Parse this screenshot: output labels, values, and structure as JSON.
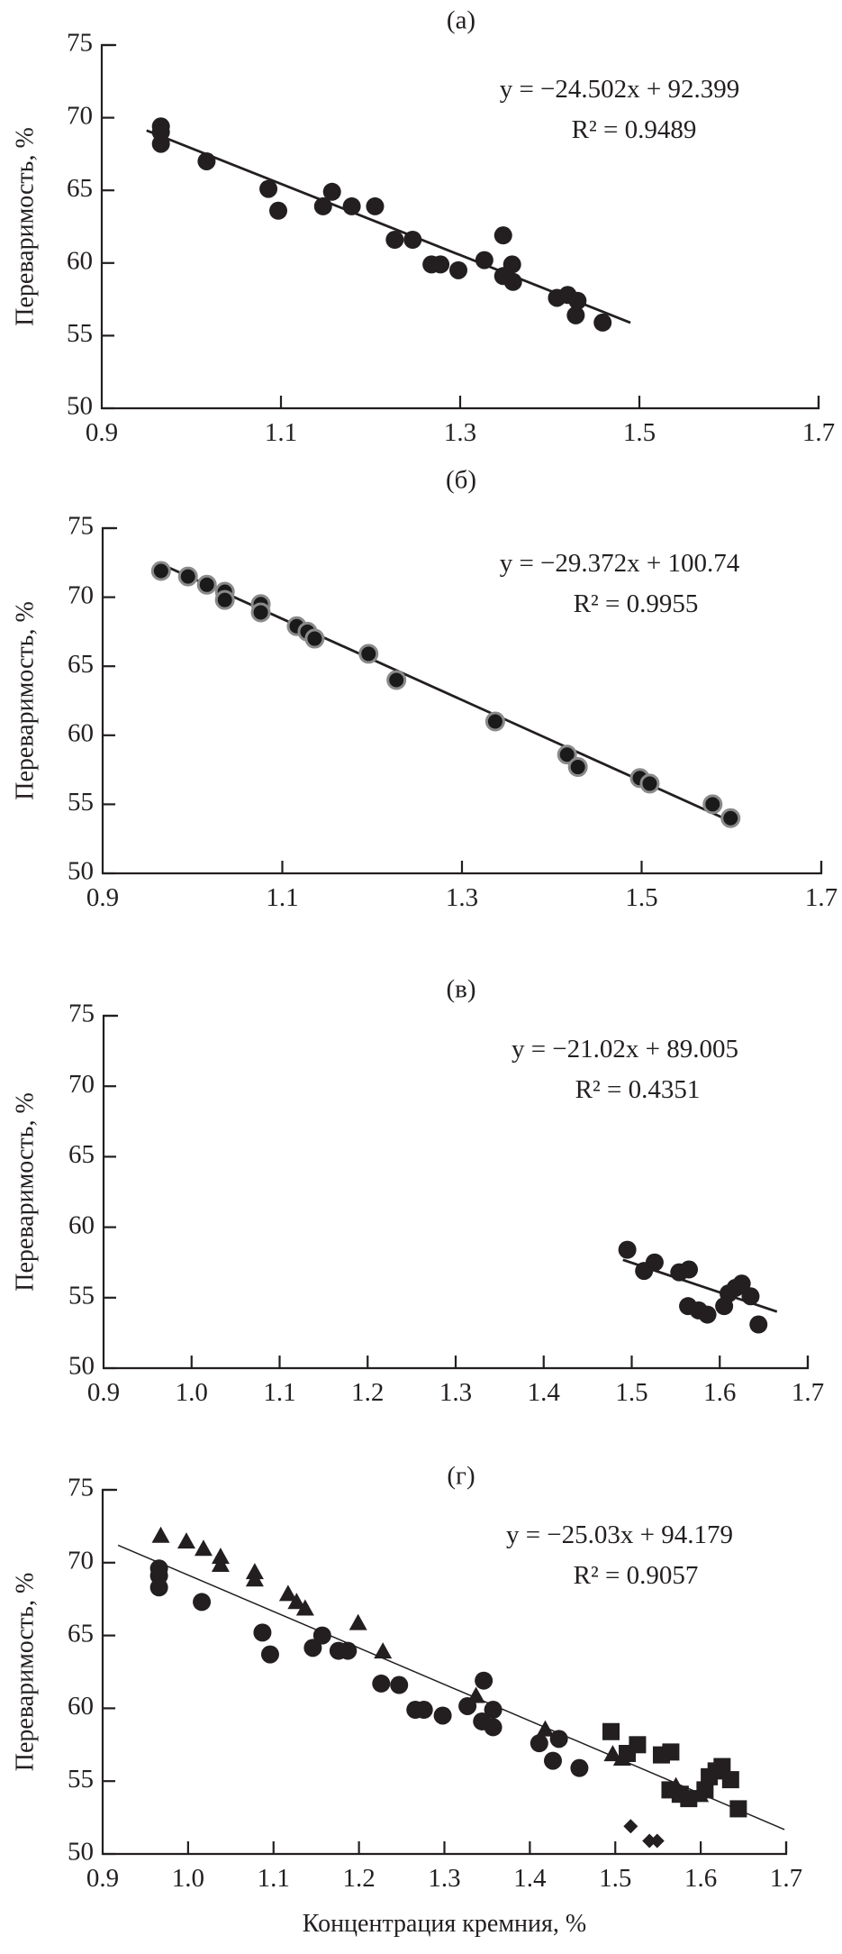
{
  "chart_data": [
    {
      "panel": "(а)",
      "type": "scatter",
      "ylabel": "Переваримость, %",
      "xlabel": "",
      "xlim": [
        0.9,
        1.7
      ],
      "ylim": [
        50,
        75
      ],
      "xticks": [
        "0.9",
        "1.1",
        "1.3",
        "1.5",
        "1.7"
      ],
      "yticks": [
        "50",
        "55",
        "60",
        "65",
        "70",
        "75"
      ],
      "grid": false,
      "equation": "y = −24.502x + 92.399",
      "r_squared": "R² = 0.9489",
      "trendline": {
        "slope": -24.502,
        "intercept": 92.399,
        "x_range": [
          0.95,
          1.49
        ]
      },
      "series": [
        {
          "marker": "circle",
          "x": [
            0.966,
            0.966,
            0.966,
            1.017,
            1.086,
            1.097,
            1.147,
            1.157,
            1.179,
            1.205,
            1.227,
            1.247,
            1.268,
            1.278,
            1.298,
            1.327,
            1.348,
            1.348,
            1.358,
            1.359,
            1.408,
            1.42,
            1.431,
            1.429,
            1.459
          ],
          "y": [
            69.4,
            69.0,
            68.2,
            67.0,
            65.1,
            63.6,
            63.9,
            64.9,
            63.9,
            63.9,
            61.6,
            61.6,
            59.9,
            59.9,
            59.5,
            60.2,
            61.9,
            59.1,
            59.9,
            58.7,
            57.6,
            57.8,
            57.4,
            56.4,
            55.9
          ]
        }
      ]
    },
    {
      "panel": "(б)",
      "type": "scatter",
      "ylabel": "Переваримость, %",
      "xlabel": "",
      "xlim": [
        0.9,
        1.7
      ],
      "ylim": [
        50,
        75
      ],
      "xticks": [
        "0.9",
        "1.1",
        "1.3",
        "1.5",
        "1.7"
      ],
      "yticks": [
        "50",
        "55",
        "60",
        "65",
        "70",
        "75"
      ],
      "grid": false,
      "equation": "y = −29.372x + 100.74",
      "r_squared": "R² = 0.9955",
      "trendline": {
        "slope": -29.372,
        "intercept": 100.74,
        "x_range": [
          0.965,
          1.6
        ]
      },
      "series": [
        {
          "marker": "circle-halo",
          "x": [
            0.965,
            0.995,
            1.016,
            1.036,
            1.036,
            1.076,
            1.076,
            1.116,
            1.128,
            1.136,
            1.196,
            1.227,
            1.337,
            1.417,
            1.429,
            1.498,
            1.509,
            1.579,
            1.599
          ],
          "y": [
            71.9,
            71.5,
            70.9,
            70.4,
            69.8,
            69.5,
            68.9,
            67.9,
            67.5,
            67.0,
            65.9,
            64.0,
            61.0,
            58.6,
            57.7,
            56.9,
            56.5,
            55.0,
            54.0
          ]
        }
      ]
    },
    {
      "panel": "(в)",
      "type": "scatter",
      "ylabel": "Переваримость, %",
      "xlabel": "",
      "xlim": [
        0.9,
        1.7
      ],
      "ylim": [
        50,
        75
      ],
      "xticks": [
        "0.9",
        "1.0",
        "1.1",
        "1.2",
        "1.3",
        "1.4",
        "1.5",
        "1.6",
        "1.7"
      ],
      "yticks": [
        "50",
        "55",
        "60",
        "65",
        "70",
        "75"
      ],
      "grid": false,
      "equation": "y = −21.02x + 89.005",
      "r_squared": "R² = 0.4351",
      "trendline": {
        "slope": -21.02,
        "intercept": 89.005,
        "x_range": [
          1.49,
          1.665
        ]
      },
      "series": [
        {
          "marker": "circle",
          "x": [
            1.495,
            1.514,
            1.526,
            1.554,
            1.565,
            1.564,
            1.576,
            1.586,
            1.605,
            1.61,
            1.618,
            1.625,
            1.635,
            1.644
          ],
          "y": [
            58.4,
            56.9,
            57.5,
            56.8,
            57.0,
            54.4,
            54.1,
            53.8,
            54.4,
            55.3,
            55.7,
            56.0,
            55.1,
            53.1
          ]
        }
      ]
    },
    {
      "panel": "(г)",
      "type": "scatter",
      "ylabel": "Переваримость, %",
      "xlabel": "Концентрация кремния, %",
      "xlim": [
        0.9,
        1.7
      ],
      "ylim": [
        50,
        75
      ],
      "xticks": [
        "0.9",
        "1.0",
        "1.1",
        "1.2",
        "1.3",
        "1.4",
        "1.5",
        "1.6",
        "1.7"
      ],
      "yticks": [
        "50",
        "55",
        "60",
        "65",
        "70",
        "75"
      ],
      "grid": false,
      "equation": "y = −25.03x + 94.179",
      "r_squared": "R² = 0.9057",
      "trendline": {
        "slope": -25.03,
        "intercept": 94.179,
        "x_range": [
          0.918,
          1.698
        ]
      },
      "series": [
        {
          "marker": "circle",
          "x": [
            0.966,
            0.966,
            0.966,
            1.016,
            1.087,
            1.096,
            1.146,
            1.157,
            1.176,
            1.187,
            1.226,
            1.247,
            1.266,
            1.276,
            1.298,
            1.327,
            1.346,
            1.344,
            1.357,
            1.357,
            1.411,
            1.434,
            1.427,
            1.458
          ],
          "y": [
            69.6,
            69.1,
            68.3,
            67.3,
            65.2,
            63.7,
            64.15,
            65.0,
            63.95,
            63.95,
            61.7,
            61.6,
            59.9,
            59.9,
            59.5,
            60.15,
            61.9,
            59.1,
            59.9,
            58.7,
            57.6,
            57.9,
            56.4,
            55.9
          ]
        },
        {
          "marker": "triangle",
          "x": [
            0.968,
            0.998,
            1.018,
            1.038,
            1.038,
            1.078,
            1.078,
            1.117,
            1.127,
            1.137,
            1.199,
            1.228,
            1.337,
            1.418,
            1.497,
            1.508,
            1.571,
            1.599
          ],
          "y": [
            71.8,
            71.4,
            70.9,
            70.35,
            69.8,
            69.3,
            68.8,
            67.8,
            67.25,
            66.8,
            65.8,
            63.85,
            60.8,
            58.5,
            56.8,
            56.5,
            54.6,
            54.0
          ]
        },
        {
          "marker": "square",
          "x": [
            1.495,
            1.514,
            1.526,
            1.554,
            1.565,
            1.564,
            1.576,
            1.586,
            1.605,
            1.61,
            1.618,
            1.625,
            1.635,
            1.644
          ],
          "y": [
            58.4,
            56.9,
            57.5,
            56.8,
            57.0,
            54.4,
            54.1,
            53.8,
            54.4,
            55.3,
            55.7,
            56.0,
            55.1,
            53.1
          ]
        },
        {
          "marker": "diamond",
          "x": [
            1.518,
            1.54,
            1.549
          ],
          "y": [
            51.9,
            50.9,
            50.9
          ]
        }
      ]
    }
  ]
}
